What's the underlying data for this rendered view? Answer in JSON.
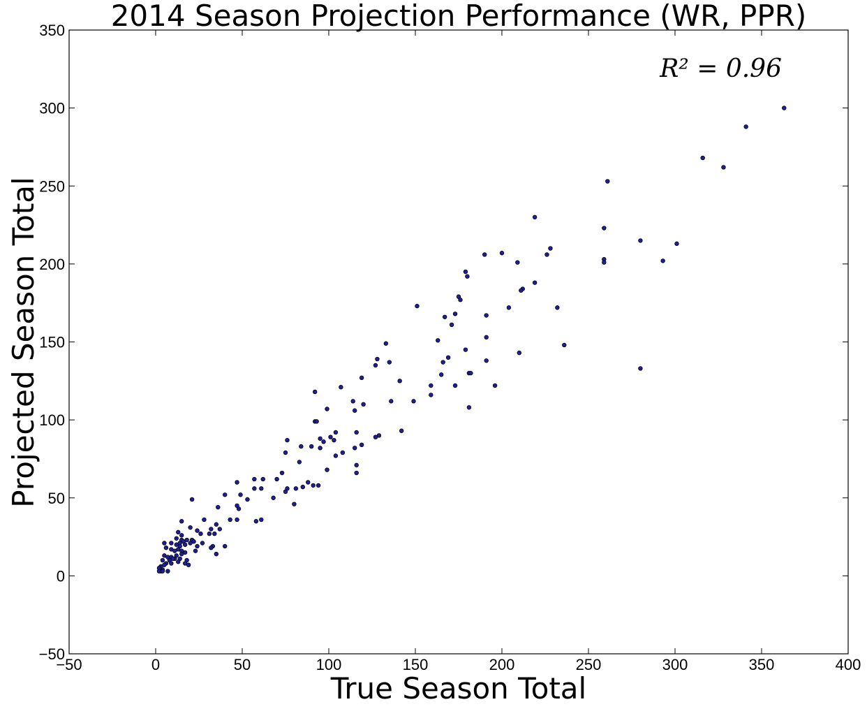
{
  "chart_data": {
    "type": "scatter",
    "title": "2014 Season Projection Performance (WR, PPR)",
    "xlabel": "True Season Total",
    "ylabel": "Projected Season Total",
    "annotation": "R² = 0.96",
    "xlim": [
      -50,
      400
    ],
    "ylim": [
      -50,
      350
    ],
    "xticks": [
      -50,
      0,
      50,
      100,
      150,
      200,
      250,
      300,
      350,
      400
    ],
    "yticks": [
      -50,
      0,
      50,
      100,
      150,
      200,
      250,
      300,
      350
    ],
    "grid": false,
    "marker_color": "#1f1f9c",
    "points": [
      [
        363,
        300
      ],
      [
        341,
        288
      ],
      [
        316,
        268
      ],
      [
        328,
        262
      ],
      [
        261,
        253
      ],
      [
        219,
        230
      ],
      [
        259,
        223
      ],
      [
        280,
        215
      ],
      [
        301,
        213
      ],
      [
        228,
        210
      ],
      [
        226,
        206
      ],
      [
        200,
        207
      ],
      [
        190,
        206
      ],
      [
        259,
        203
      ],
      [
        259,
        201
      ],
      [
        209,
        201
      ],
      [
        293,
        202
      ],
      [
        179,
        195
      ],
      [
        180,
        192
      ],
      [
        219,
        188
      ],
      [
        175,
        179
      ],
      [
        176,
        177
      ],
      [
        212,
        184
      ],
      [
        211,
        183
      ],
      [
        204,
        172
      ],
      [
        232,
        172
      ],
      [
        151,
        173
      ],
      [
        173,
        168
      ],
      [
        167,
        166
      ],
      [
        191,
        167
      ],
      [
        171,
        161
      ],
      [
        163,
        151
      ],
      [
        191,
        153
      ],
      [
        236,
        148
      ],
      [
        133,
        149
      ],
      [
        179,
        145
      ],
      [
        210,
        143
      ],
      [
        169,
        140
      ],
      [
        128,
        139
      ],
      [
        191,
        138
      ],
      [
        135,
        137
      ],
      [
        166,
        137
      ],
      [
        280,
        133
      ],
      [
        127,
        135
      ],
      [
        181,
        130
      ],
      [
        182,
        130
      ],
      [
        165,
        129
      ],
      [
        141,
        125
      ],
      [
        119,
        127
      ],
      [
        159,
        122
      ],
      [
        173,
        122
      ],
      [
        196,
        122
      ],
      [
        107,
        121
      ],
      [
        92,
        118
      ],
      [
        159,
        116
      ],
      [
        149,
        112
      ],
      [
        114,
        112
      ],
      [
        136,
        112
      ],
      [
        120,
        110
      ],
      [
        181,
        108
      ],
      [
        99,
        107
      ],
      [
        115,
        106
      ],
      [
        92,
        99
      ],
      [
        93,
        99
      ],
      [
        142,
        93
      ],
      [
        104,
        92
      ],
      [
        116,
        92
      ],
      [
        129,
        90
      ],
      [
        127,
        89
      ],
      [
        101,
        89
      ],
      [
        95,
        88
      ],
      [
        76,
        87
      ],
      [
        97,
        86
      ],
      [
        103,
        87
      ],
      [
        119,
        84
      ],
      [
        84,
        83
      ],
      [
        90,
        83
      ],
      [
        115,
        82
      ],
      [
        95,
        82
      ],
      [
        75,
        79
      ],
      [
        108,
        79
      ],
      [
        104,
        77
      ],
      [
        83,
        73
      ],
      [
        116,
        71
      ],
      [
        99,
        68
      ],
      [
        116,
        66
      ],
      [
        73,
        66
      ],
      [
        70,
        62
      ],
      [
        57,
        62
      ],
      [
        62,
        62
      ],
      [
        88,
        60
      ],
      [
        91,
        58
      ],
      [
        94,
        58
      ],
      [
        76,
        56
      ],
      [
        85,
        57
      ],
      [
        57,
        56
      ],
      [
        61,
        56
      ],
      [
        81,
        56
      ],
      [
        75,
        54
      ],
      [
        47,
        60
      ],
      [
        49,
        52
      ],
      [
        40,
        52
      ],
      [
        53,
        49
      ],
      [
        21,
        49
      ],
      [
        68,
        50
      ],
      [
        80,
        46
      ],
      [
        47,
        45
      ],
      [
        36,
        44
      ],
      [
        48,
        43
      ],
      [
        61,
        36
      ],
      [
        58,
        35
      ],
      [
        43,
        36
      ],
      [
        47,
        36
      ],
      [
        28,
        36
      ],
      [
        15,
        35
      ],
      [
        35,
        33
      ],
      [
        20,
        31
      ],
      [
        32,
        30
      ],
      [
        24,
        29
      ],
      [
        37,
        30
      ],
      [
        13,
        28
      ],
      [
        34,
        27
      ],
      [
        15,
        26
      ],
      [
        26,
        27
      ],
      [
        31,
        27
      ],
      [
        12,
        24
      ],
      [
        15,
        23
      ],
      [
        16,
        22
      ],
      [
        18,
        23
      ],
      [
        21,
        23
      ],
      [
        22,
        22
      ],
      [
        27,
        21
      ],
      [
        9,
        21
      ],
      [
        12,
        20
      ],
      [
        14,
        21
      ],
      [
        17,
        20
      ],
      [
        20,
        21
      ],
      [
        5,
        21
      ],
      [
        14,
        19
      ],
      [
        24,
        19
      ],
      [
        33,
        19
      ],
      [
        40,
        19
      ],
      [
        6,
        18
      ],
      [
        9,
        17
      ],
      [
        13,
        17
      ],
      [
        11,
        16
      ],
      [
        15,
        16
      ],
      [
        23,
        16
      ],
      [
        32,
        18
      ],
      [
        17,
        15
      ],
      [
        15,
        14
      ],
      [
        12,
        13
      ],
      [
        5,
        13
      ],
      [
        9,
        12
      ],
      [
        7,
        12
      ],
      [
        11,
        11
      ],
      [
        14,
        11
      ],
      [
        35,
        14
      ],
      [
        18,
        10
      ],
      [
        4,
        10
      ],
      [
        8,
        10
      ],
      [
        13,
        9
      ],
      [
        17,
        8
      ],
      [
        6,
        8
      ],
      [
        5,
        7
      ],
      [
        19,
        7
      ],
      [
        3,
        6
      ],
      [
        9,
        8
      ],
      [
        2,
        5
      ],
      [
        4,
        4
      ],
      [
        7,
        3
      ],
      [
        3,
        3
      ],
      [
        2,
        3
      ],
      [
        4,
        3
      ],
      [
        10,
        11
      ]
    ]
  }
}
